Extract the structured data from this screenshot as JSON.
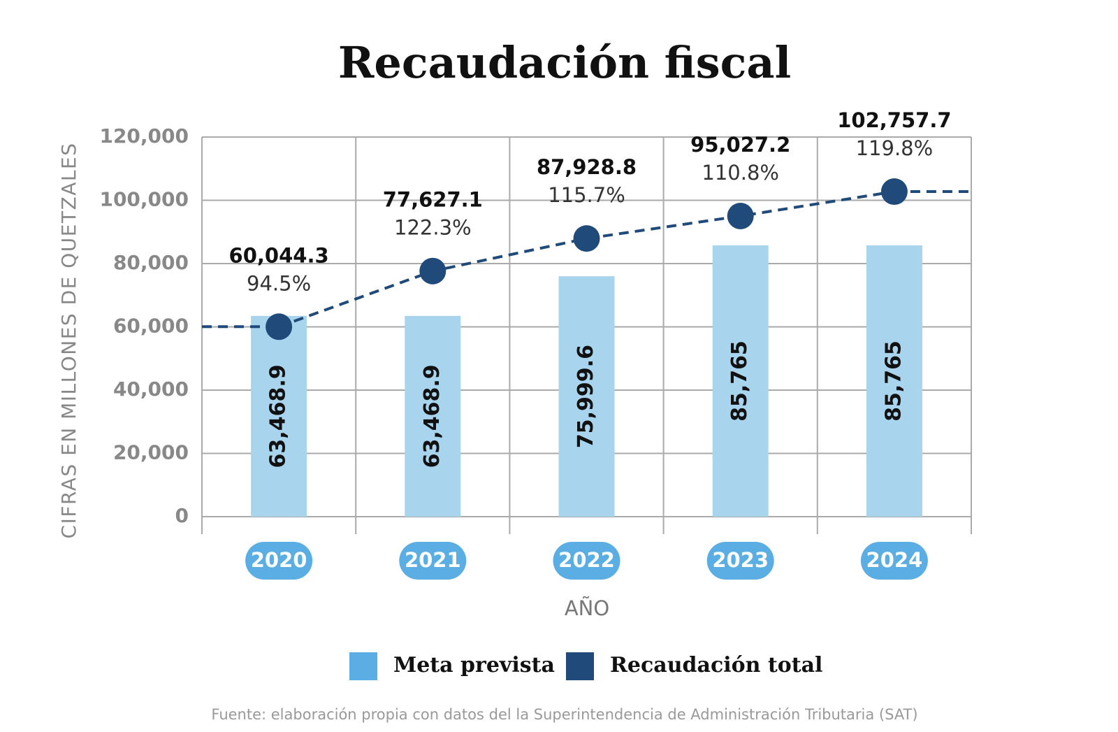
{
  "chart_data": {
    "type": "bar-line",
    "title": "Recaudación fiscal",
    "y_label": "CIFRAS EN MILLONES DE QUETZALES",
    "x_label": "AÑO",
    "source": "Fuente: elaboración propia con datos del la Superintendencia de Administración Tributaria (SAT)",
    "categories": [
      "2020",
      "2021",
      "2022",
      "2023",
      "2024"
    ],
    "series": [
      {
        "name": "Meta prevista",
        "type": "bar",
        "color": "#a9d4ee",
        "legend_color": "#5aaee4",
        "values": [
          63468.9,
          63468.9,
          75999.6,
          85765,
          85765
        ],
        "value_labels": [
          "63,468.9",
          "63,468.9",
          "75,999.6",
          "85,765",
          "85,765"
        ]
      },
      {
        "name": "Recaudación total",
        "type": "line",
        "color": "#1f4a7a",
        "values": [
          60044.3,
          77627.1,
          87928.8,
          95027.2,
          102757.7
        ],
        "value_labels": [
          "60,044.3",
          "77,627.1",
          "87,928.8",
          "95,027.2",
          "102,757.7"
        ],
        "percent_labels": [
          "94.5%",
          "122.3%",
          "115.7%",
          "110.8%",
          "119.8%"
        ]
      }
    ],
    "ylim": [
      0,
      120000
    ],
    "yticks": [
      0,
      {
        "value": 20000,
        "label": "20,000"
      },
      {
        "value": 40000,
        "label": "40,000"
      },
      {
        "value": 60000,
        "label": "60,000"
      },
      {
        "value": 80000,
        "label": "80,000"
      },
      {
        "value": 100000,
        "label": "100,000"
      },
      {
        "value": 120000,
        "label": "120,000"
      }
    ],
    "grid": true,
    "category_color": "#5aaee4",
    "legend_position": "bottom"
  }
}
